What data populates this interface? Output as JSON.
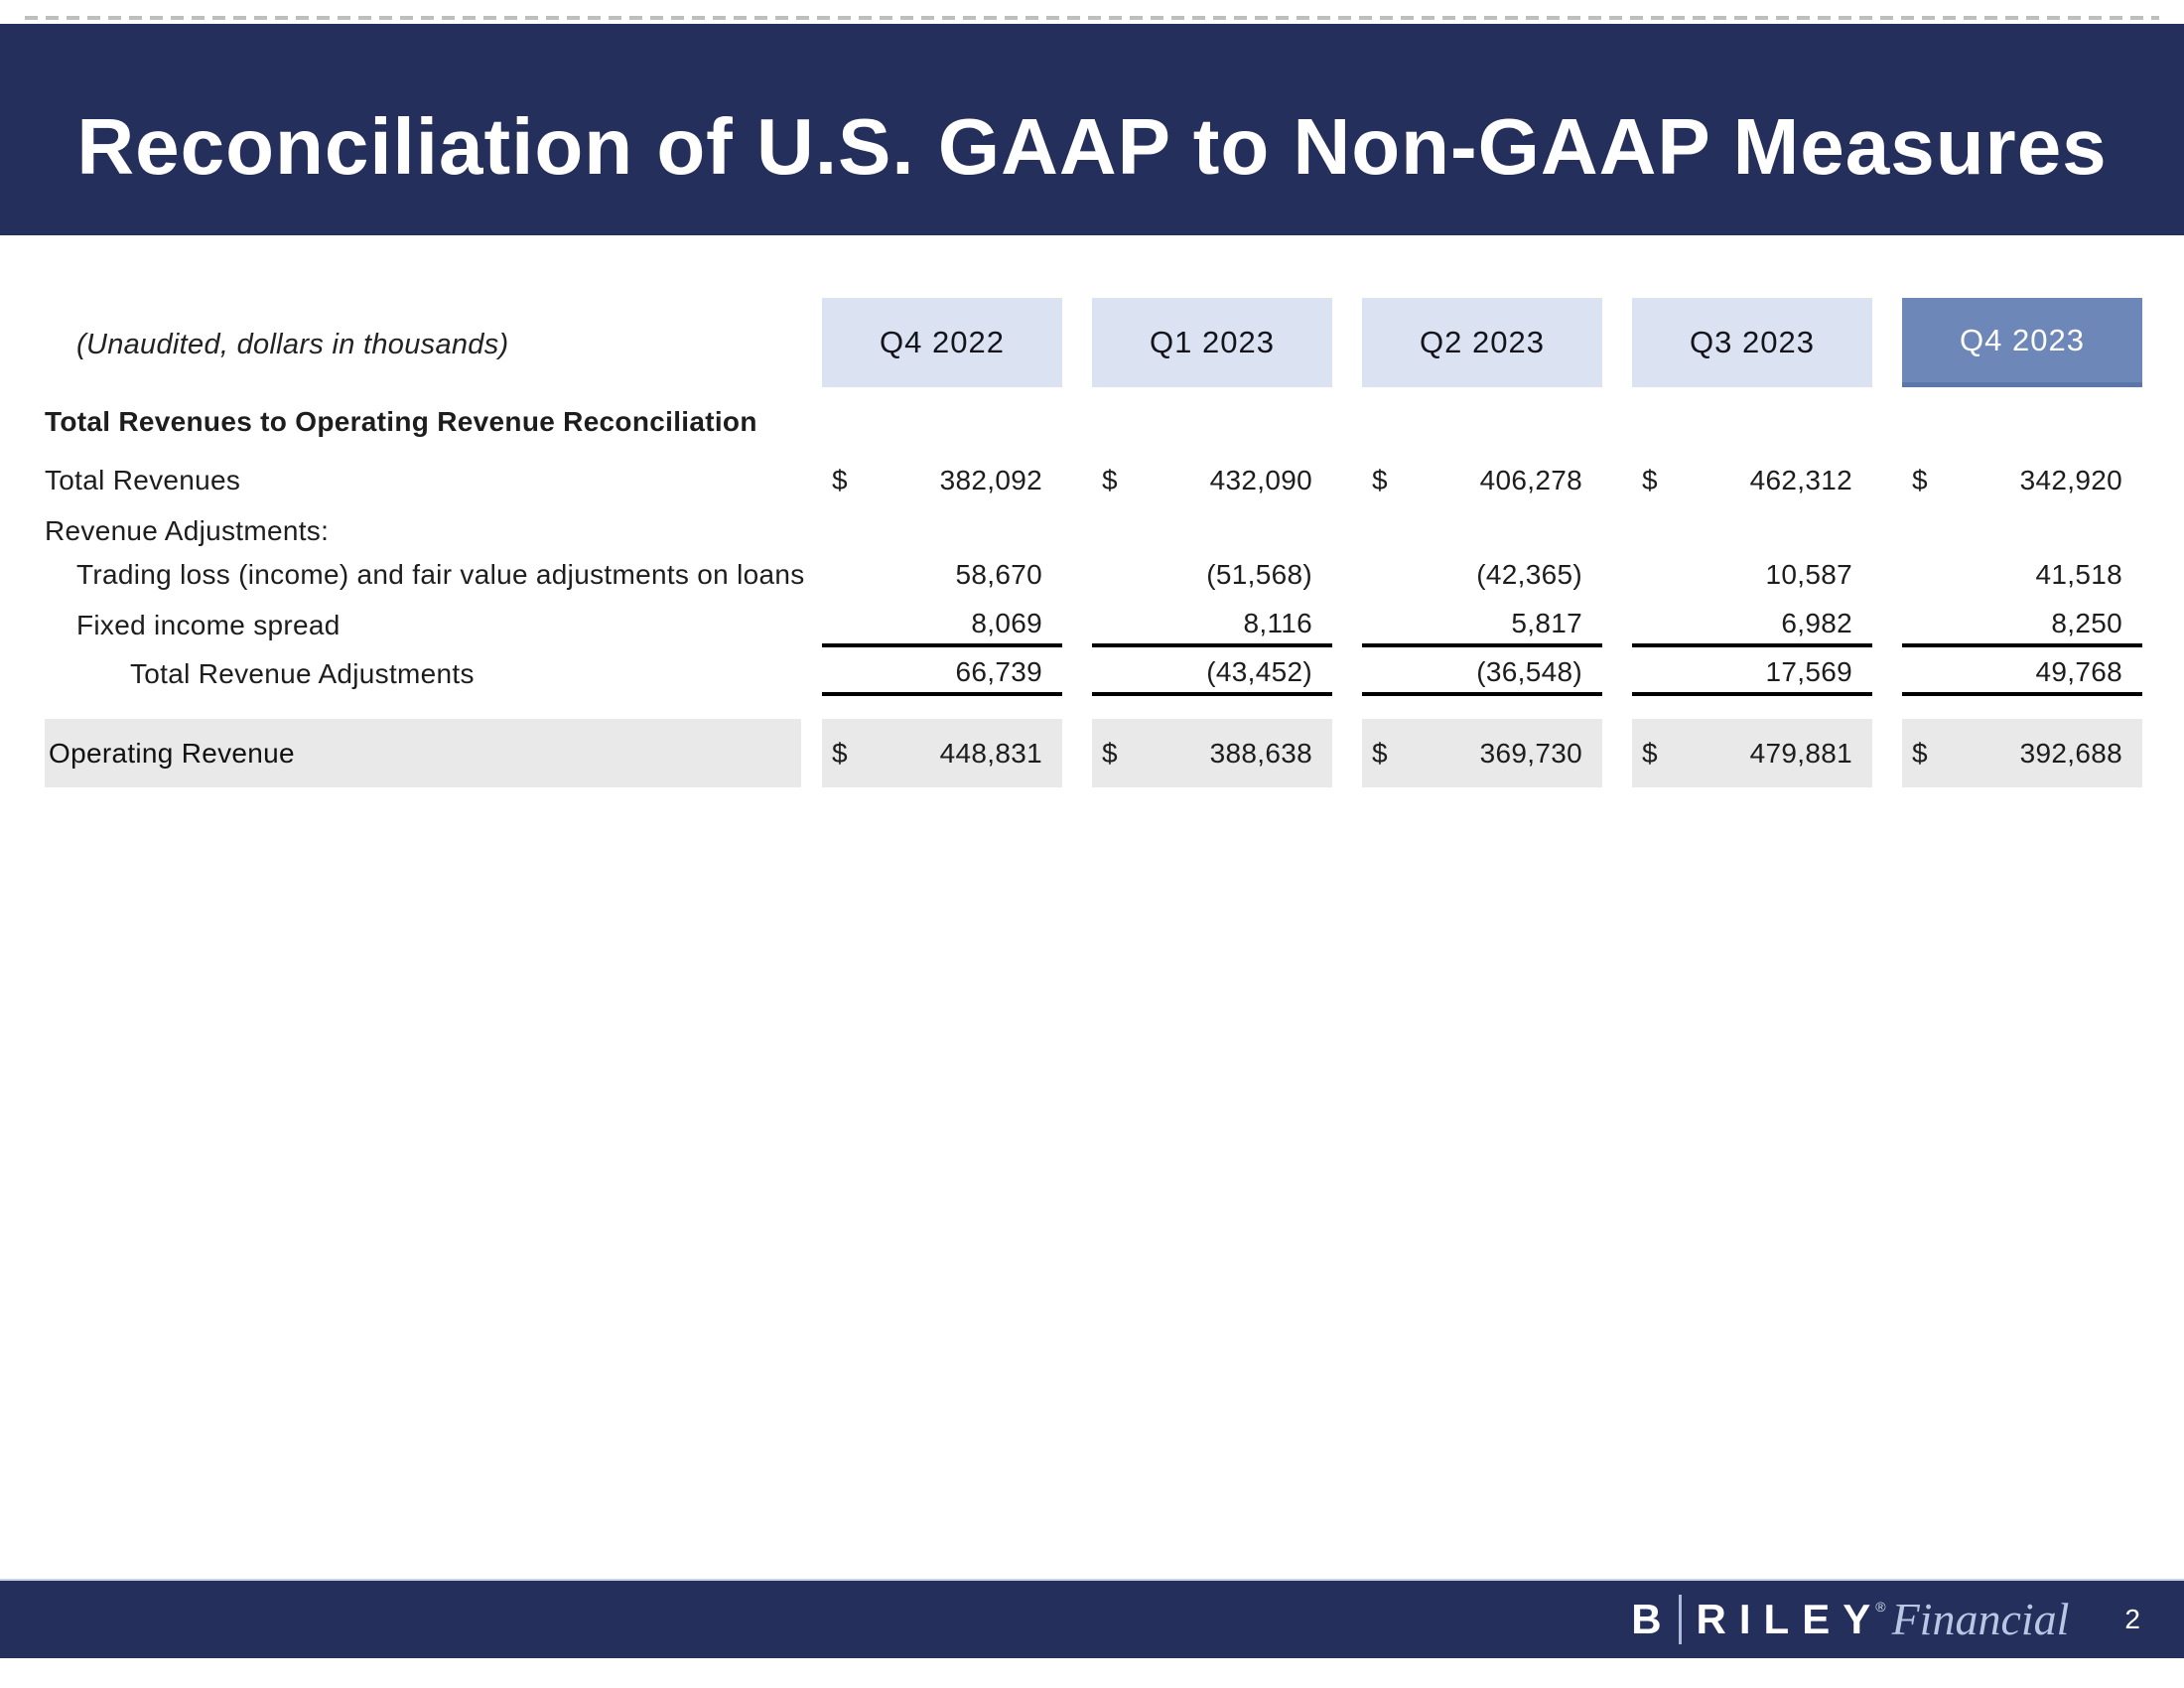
{
  "slide": {
    "title": "Reconciliation of U.S. GAAP to Non-GAAP Measures",
    "note": "(Unaudited, dollars in thousands)",
    "currency_symbol": "$"
  },
  "table": {
    "section_header": "Total Revenues to Operating Revenue Reconciliation",
    "columns": [
      "Q4 2022",
      "Q1 2023",
      "Q2 2023",
      "Q3 2023",
      "Q4 2023"
    ],
    "highlighted_column": "Q4 2023",
    "rows": [
      {
        "label": "Total Revenues",
        "type": "currency",
        "values": [
          "382,092",
          "432,090",
          "406,278",
          "462,312",
          "342,920"
        ]
      },
      {
        "label": "Revenue Adjustments:",
        "type": "subheader",
        "values": []
      },
      {
        "label": "Trading loss (income) and fair value adjustments on loans",
        "type": "detail",
        "values": [
          "58,670",
          "(51,568)",
          "(42,365)",
          "10,587",
          "41,518"
        ]
      },
      {
        "label": "Fixed income spread",
        "type": "detail-underlined",
        "values": [
          "8,069",
          "8,116",
          "5,817",
          "6,982",
          "8,250"
        ]
      },
      {
        "label": "Total Revenue Adjustments",
        "type": "subtotal-underlined",
        "values": [
          "66,739",
          "(43,452)",
          "(36,548)",
          "17,569",
          "49,768"
        ]
      },
      {
        "label": "Operating Revenue",
        "type": "total-currency-highlighted",
        "values": [
          "448,831",
          "388,638",
          "369,730",
          "479,881",
          "392,688"
        ]
      }
    ]
  },
  "footer": {
    "brand_b": "B",
    "brand_riley": "RILEY",
    "brand_reg": "®",
    "brand_financial": "Financial",
    "page_number": "2"
  },
  "colors": {
    "navy": "#242f5b",
    "header-light": "#dbe3f2",
    "header-selected": "#6e87b9",
    "row-highlight": "#e9e9e9",
    "rule": "#000000"
  }
}
